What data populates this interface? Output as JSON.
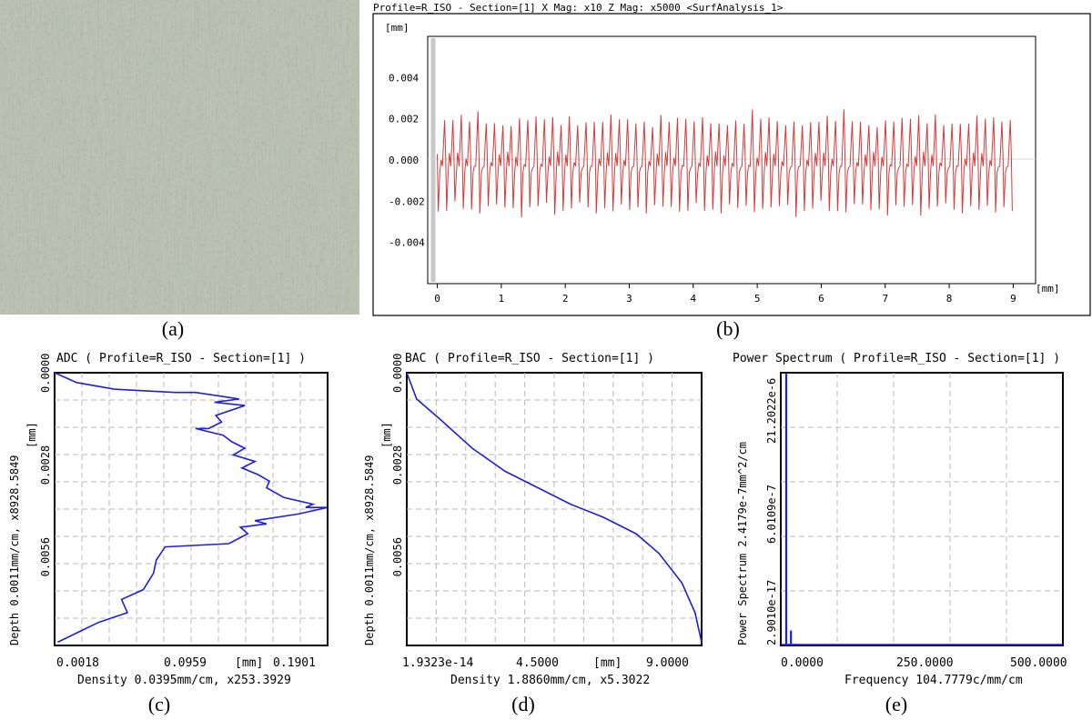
{
  "captions": {
    "a": "(a)",
    "b": "(b)",
    "c": "(c)",
    "d": "(d)",
    "e": "(e)"
  },
  "panel_b": {
    "header": "Profile=R_ISO - Section=[1]   X Mag: x10  Z Mag: x5000 <SurfAnalysis_1>",
    "y_unit": "[mm]",
    "x_unit": "[mm]",
    "y_ticks": [
      "0.004",
      "0.002",
      "0.000",
      "-0.002",
      "-0.004"
    ],
    "x_ticks": [
      "0",
      "1",
      "2",
      "3",
      "4",
      "5",
      "6",
      "7",
      "8",
      "9"
    ]
  },
  "panel_c": {
    "title": "ADC ( Profile=R_ISO - Section=[1] )",
    "ylabel": "Depth 0.0011mm/cm, x8928.5849",
    "y_unit": "[mm]",
    "y_ticks": [
      "0.0000",
      "0.0028",
      "0.0056"
    ],
    "x_ticks": [
      "0.0018",
      "0.0959",
      "0.1901"
    ],
    "x_unit": "[mm]",
    "xlabel": "Density 0.0395mm/cm, x253.3929"
  },
  "panel_d": {
    "title": "BAC ( Profile=R_ISO - Section=[1] )",
    "ylabel": "Depth 0.0011mm/cm, x8928.5849",
    "y_unit": "[mm]",
    "y_ticks": [
      "0.0000",
      "0.0028",
      "0.0056"
    ],
    "x_ticks": [
      "1.9323e-14",
      "4.5000",
      "9.0000"
    ],
    "x_unit": "[mm]",
    "xlabel": "Density 1.8860mm/cm, x5.3022"
  },
  "panel_e": {
    "title": "Power Spectrum ( Profile=R_ISO - Section=[1] )",
    "ylabel": "Power Spectrum 2.4179e-7mm^2/cm",
    "y_ticks": [
      "2.9010e-17",
      "6.0109e-7",
      "21.2022e-6"
    ],
    "x_ticks": [
      "0.0000",
      "250.0000",
      "500.0000"
    ],
    "xlabel": "Frequency 104.7779c/mm/cm"
  },
  "colors": {
    "profile": "#d63a3a",
    "curve": "#1e1ee0",
    "grid": "#b9b9b9",
    "axis": "#000000"
  },
  "chart_data": [
    {
      "type": "line",
      "id": "profile",
      "x_range": [
        0,
        9
      ],
      "ylim": [
        -0.006,
        0.006
      ],
      "y_amplitude_approx": [
        -0.0028,
        0.0025
      ],
      "period_mm": 0.13,
      "x": [
        0,
        0.13,
        0.26,
        0.39,
        0.52,
        0.65,
        0.78,
        0.91,
        1.04,
        1.17,
        1.3
      ],
      "y_peaks": [
        0.0021,
        0.002,
        0.0022,
        0.0019,
        0.0025,
        0.002,
        0.0021,
        0.002,
        0.0019,
        0.0022,
        0.002
      ],
      "y_troughs": [
        -0.0026,
        -0.0024,
        -0.0028,
        -0.0025,
        -0.0026,
        -0.0023,
        -0.0027,
        -0.0025,
        -0.0026,
        -0.0024,
        -0.0025
      ]
    },
    {
      "type": "line",
      "id": "adc",
      "xlim": [
        0.0018,
        0.1901
      ],
      "ylim": [
        0,
        0.0083
      ],
      "points": [
        [
          0.0018,
          0.0
        ],
        [
          0.017,
          0.0003
        ],
        [
          0.043,
          0.0005
        ],
        [
          0.085,
          0.0006
        ],
        [
          0.099,
          0.0006
        ],
        [
          0.129,
          0.0008
        ],
        [
          0.112,
          0.0009
        ],
        [
          0.133,
          0.001
        ],
        [
          0.113,
          0.0013
        ],
        [
          0.117,
          0.0015
        ],
        [
          0.108,
          0.0017
        ],
        [
          0.099,
          0.0017
        ],
        [
          0.118,
          0.0019
        ],
        [
          0.124,
          0.0021
        ],
        [
          0.133,
          0.0023
        ],
        [
          0.125,
          0.0025
        ],
        [
          0.14,
          0.0027
        ],
        [
          0.131,
          0.0029
        ],
        [
          0.142,
          0.0031
        ],
        [
          0.15,
          0.0033
        ],
        [
          0.148,
          0.0035
        ],
        [
          0.16,
          0.0038
        ],
        [
          0.18,
          0.004
        ],
        [
          0.175,
          0.0041
        ],
        [
          0.19,
          0.0041
        ],
        [
          0.17,
          0.0043
        ],
        [
          0.14,
          0.0045
        ],
        [
          0.148,
          0.0046
        ],
        [
          0.13,
          0.0047
        ],
        [
          0.135,
          0.0049
        ],
        [
          0.122,
          0.0052
        ],
        [
          0.078,
          0.0053
        ],
        [
          0.072,
          0.0057
        ],
        [
          0.07,
          0.0061
        ],
        [
          0.063,
          0.0066
        ],
        [
          0.048,
          0.0069
        ],
        [
          0.052,
          0.0073
        ],
        [
          0.032,
          0.0076
        ],
        [
          0.018,
          0.0079
        ],
        [
          0.004,
          0.0082
        ]
      ]
    },
    {
      "type": "line",
      "id": "bac",
      "xlim": [
        0,
        9.0
      ],
      "ylim": [
        0,
        0.0083
      ],
      "points": [
        [
          0.0,
          0.0
        ],
        [
          0.3,
          0.0008
        ],
        [
          1.0,
          0.0014
        ],
        [
          2.0,
          0.0023
        ],
        [
          3.0,
          0.003
        ],
        [
          4.0,
          0.0035
        ],
        [
          5.0,
          0.004
        ],
        [
          6.0,
          0.0044
        ],
        [
          7.0,
          0.0049
        ],
        [
          7.7,
          0.0055
        ],
        [
          8.4,
          0.0064
        ],
        [
          8.8,
          0.0073
        ],
        [
          9.0,
          0.0082
        ]
      ]
    },
    {
      "type": "bar",
      "id": "power-spectrum",
      "xlim": [
        0,
        600
      ],
      "x": [
        0,
        10,
        20
      ],
      "values": [
        1.0,
        0.055,
        0.006
      ]
    }
  ]
}
